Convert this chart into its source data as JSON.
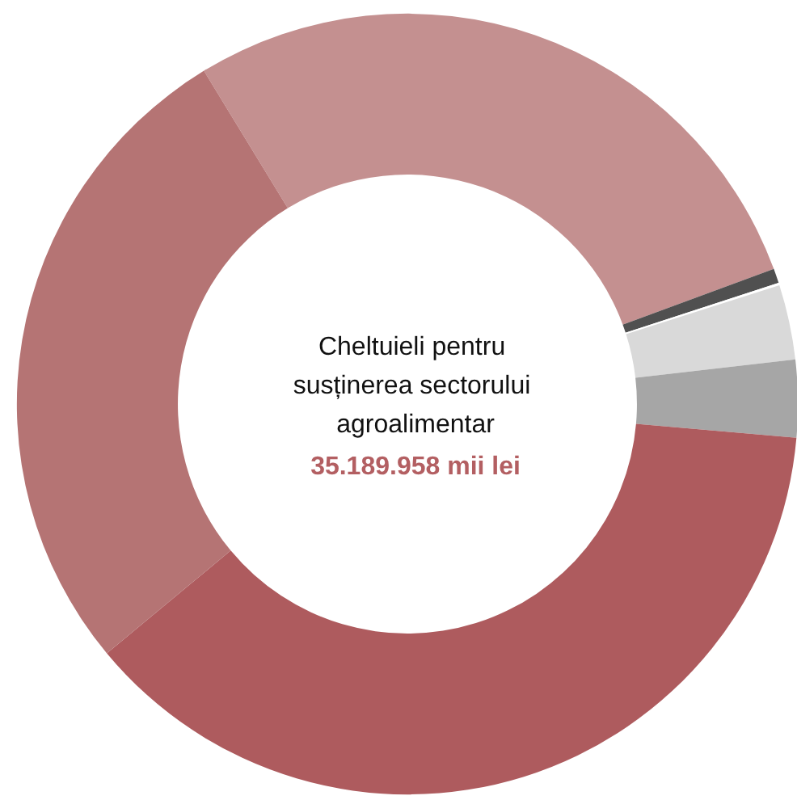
{
  "chart_data": {
    "type": "donut",
    "title": "Cheltuieli pentru susținerea sectorului agroalimentar",
    "subtitle": "35.189.958 mii lei",
    "categories": [
      null,
      null,
      null,
      null,
      null,
      null,
      null
    ],
    "values": [
      28.1,
      0.6,
      0.1,
      3.1,
      3.2,
      37.6,
      27.3
    ],
    "colors": [
      "#c49090",
      "#505050",
      "#ffffff",
      "#d9d9d9",
      "#a6a6a6",
      "#ae5b5e",
      "#b57474"
    ]
  }
}
